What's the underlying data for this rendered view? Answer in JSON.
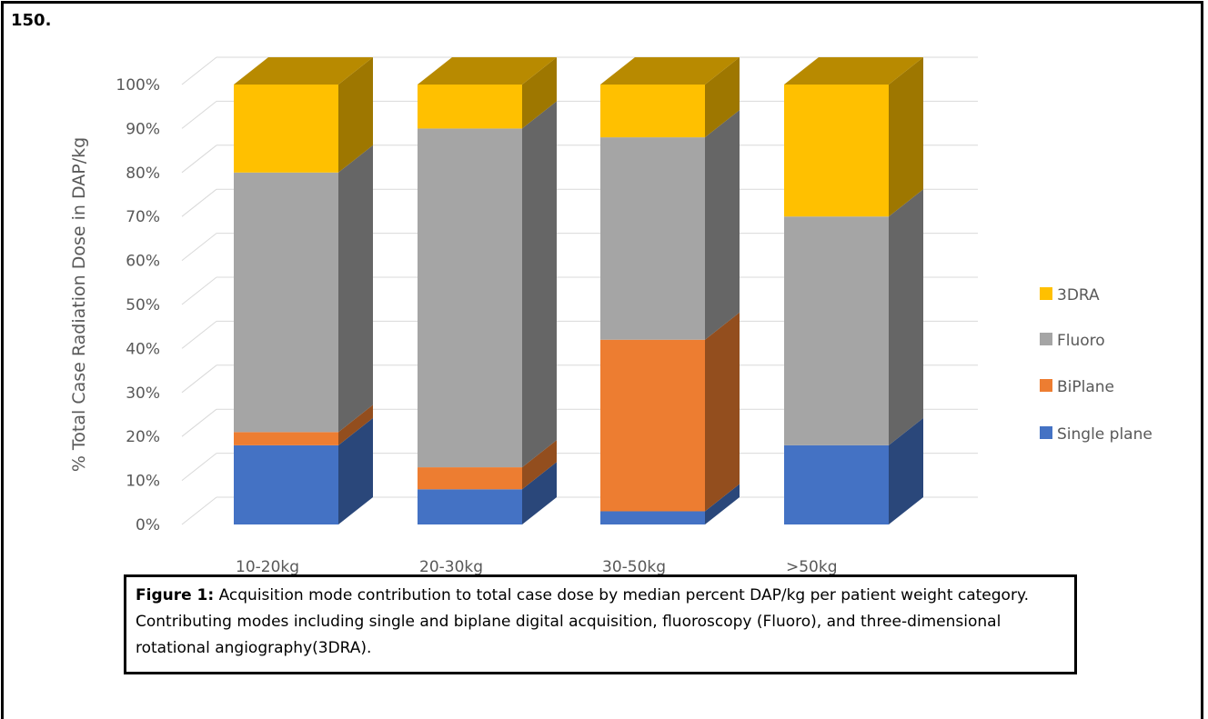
{
  "figure_number": "150.",
  "caption": {
    "label": "Figure 1:",
    "text": " Acquisition mode contribution to total case dose by median percent DAP/kg per patient weight category. Contributing modes including single and biplane digital acquisition, fluoroscopy (Fluoro), and three-dimensional rotational angiography(3DRA)."
  },
  "colors": {
    "Single plane": "#4472C4",
    "BiPlane": "#ED7D31",
    "Fluoro": "#A5A5A5",
    "3DRA": "#FFC000"
  },
  "chart_data": {
    "type": "bar",
    "stacked": true,
    "three_d": true,
    "categories": [
      "10-20kg",
      "20-30kg",
      "30-50kg",
      ">50kg"
    ],
    "series": [
      {
        "name": "Single plane",
        "values": [
          18,
          8,
          3,
          18
        ]
      },
      {
        "name": "BiPlane",
        "values": [
          3,
          5,
          39,
          0
        ]
      },
      {
        "name": "Fluoro",
        "values": [
          59,
          77,
          46,
          52
        ]
      },
      {
        "name": "3DRA",
        "values": [
          20,
          10,
          12,
          30
        ]
      }
    ],
    "ylabel": "% Total Case Radiation Dose in DAP/kg",
    "xlabel": "",
    "ylim": [
      0,
      100
    ],
    "yticks": [
      "0%",
      "10%",
      "20%",
      "30%",
      "40%",
      "50%",
      "60%",
      "70%",
      "80%",
      "90%",
      "100%"
    ],
    "grid": true,
    "legend": {
      "position": "right",
      "entries": [
        "3DRA",
        "Fluoro",
        "BiPlane",
        "Single plane"
      ]
    }
  }
}
